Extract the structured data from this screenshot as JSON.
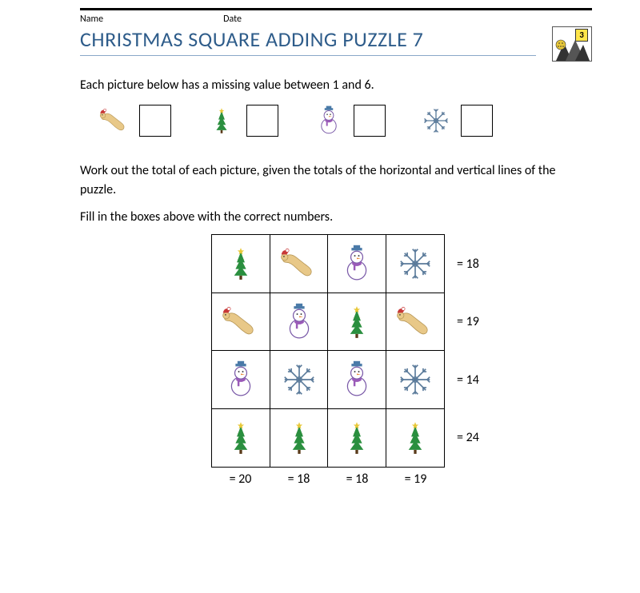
{
  "header": {
    "name_label": "Name",
    "date_label": "Date",
    "title": "CHRISTMAS SQUARE ADDING PUZZLE 7",
    "logo_number": "3"
  },
  "text": {
    "intro": "Each picture below has a missing value between 1 and 6.",
    "para1": "Work out the total of each picture, given the totals of the horizontal and vertical lines of the puzzle.",
    "para2": "Fill in the boxes above with the correct numbers."
  },
  "legend": {
    "items": [
      "worm",
      "tree",
      "snowman",
      "snowflake"
    ]
  },
  "puzzle": {
    "grid": [
      [
        "tree",
        "worm",
        "snowman",
        "snowflake"
      ],
      [
        "worm",
        "snowman",
        "tree",
        "worm"
      ],
      [
        "snowman",
        "snowflake",
        "snowman",
        "snowflake"
      ],
      [
        "tree",
        "tree",
        "tree",
        "tree"
      ]
    ],
    "row_totals": [
      "= 18",
      "= 19",
      "= 14",
      "= 24"
    ],
    "col_totals": [
      "= 20",
      "= 18",
      "= 18",
      "= 19"
    ]
  },
  "colors": {
    "title_color": "#2e5c8a",
    "title_underline": "#8aa8c8",
    "tree_green": "#2a8f3f",
    "tree_mid": "#d8a23a",
    "tree_star": "#e8c838",
    "tree_trunk": "#5a3a1a",
    "snowman_body": "#ffffff",
    "snowman_outline": "#7a5aa8",
    "snowman_hat": "#4a7aa8",
    "snowman_scarf": "#9a5ab8",
    "snowflake": "#5a7a9a",
    "worm_body": "#e8c888",
    "worm_hat": "#c83838"
  }
}
